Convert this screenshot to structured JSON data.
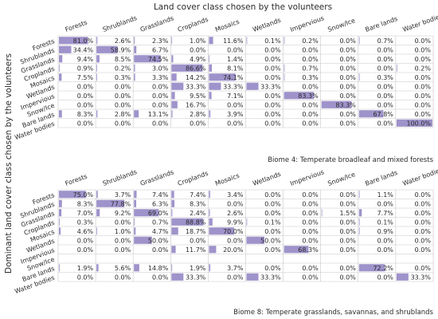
{
  "title": "Land cover class chosen by the volunteers",
  "ylabel": "Dominant land cover class chosen by the volunteers",
  "colors": {
    "bar": "#9f93cb",
    "grid": "#c8c8c8",
    "text": "#2a2a2a"
  },
  "chart_data": [
    {
      "type": "table",
      "caption": "Biome 4: Temperate broadleaf and mixed forests",
      "columns": [
        "Forests",
        "Shrublands",
        "Grasslands",
        "Croplands",
        "Mosaics",
        "Wetlands",
        "Impervious",
        "Snow/Ice",
        "Bare lands",
        "Water bodies"
      ],
      "rows": [
        "Forests",
        "Shrublands",
        "Grasslands",
        "Croplands",
        "Mosaics",
        "Wetlands",
        "Impervious",
        "Snow/Ice",
        "Bare lands",
        "Water bodies"
      ],
      "values": [
        [
          "81.0%",
          "2.6%",
          "2.3%",
          "1.0%",
          "11.6%",
          "0.1%",
          "0.2%",
          "0.0%",
          "0.7%",
          "0.0%"
        ],
        [
          "34.4%",
          "58.9%",
          "6.7%",
          "0.0%",
          "0.0%",
          "0.0%",
          "0.0%",
          "0.0%",
          "0.0%",
          "0.0%"
        ],
        [
          "9.4%",
          "8.5%",
          "74.5%",
          "4.9%",
          "1.4%",
          "0.0%",
          "0.0%",
          "0.0%",
          "0.0%",
          "0.0%"
        ],
        [
          "0.9%",
          "0.2%",
          "3.0%",
          "86.6%",
          "8.1%",
          "0.0%",
          "0.7%",
          "0.0%",
          "0.0%",
          "0.2%"
        ],
        [
          "7.5%",
          "0.3%",
          "3.3%",
          "14.2%",
          "74.1%",
          "0.0%",
          "0.3%",
          "0.0%",
          "0.3%",
          "0.0%"
        ],
        [
          "0.0%",
          "0.0%",
          "0.0%",
          "33.3%",
          "33.3%",
          "33.3%",
          "0.0%",
          "0.0%",
          "0.0%",
          "0.0%"
        ],
        [
          "0.0%",
          "0.0%",
          "0.0%",
          "9.5%",
          "7.1%",
          "0.0%",
          "83.3%",
          "0.0%",
          "0.0%",
          "0.0%"
        ],
        [
          "0.0%",
          "0.0%",
          "0.0%",
          "16.7%",
          "0.0%",
          "0.0%",
          "0.0%",
          "83.3%",
          "0.0%",
          "0.0%"
        ],
        [
          "8.3%",
          "2.8%",
          "13.1%",
          "2.8%",
          "3.9%",
          "0.0%",
          "0.0%",
          "0.0%",
          "67.8%",
          "0.0%"
        ],
        [
          "0.0%",
          "0.0%",
          "0.0%",
          "0.0%",
          "0.0%",
          "0.0%",
          "0.0%",
          "0.0%",
          "0.0%",
          "100.0%"
        ]
      ]
    },
    {
      "type": "table",
      "caption": "Biome 8: Temperate grasslands, savannas, and shrublands",
      "columns": [
        "Forests",
        "Shrublands",
        "Grasslands",
        "Croplands",
        "Mosaics",
        "Wetlands",
        "Impervious",
        "Snow/Ice",
        "Bare lands",
        "Water bodies"
      ],
      "rows": [
        "Forests",
        "Shrublands",
        "Grasslands",
        "Croplands",
        "Mosaics",
        "Wetlands",
        "Impervious",
        "Snow/Ice",
        "Bare lands",
        "Water bodies"
      ],
      "values": [
        [
          "75.0%",
          "3.7%",
          "7.4%",
          "7.4%",
          "3.4%",
          "0.0%",
          "0.0%",
          "0.0%",
          "1.1%",
          "0.0%"
        ],
        [
          "8.3%",
          "77.8%",
          "6.3%",
          "8.3%",
          "0.0%",
          "0.0%",
          "0.0%",
          "0.0%",
          "0.0%",
          "0.0%"
        ],
        [
          "7.0%",
          "9.2%",
          "69.0%",
          "2.4%",
          "2.6%",
          "0.0%",
          "0.0%",
          "1.5%",
          "7.7%",
          "0.0%"
        ],
        [
          "0.3%",
          "0.0%",
          "0.7%",
          "88.8%",
          "9.9%",
          "0.1%",
          "0.0%",
          "0.0%",
          "0.1%",
          "0.0%"
        ],
        [
          "4.6%",
          "1.0%",
          "4.7%",
          "18.7%",
          "70.0%",
          "0.0%",
          "0.0%",
          "0.0%",
          "0.9%",
          "0.0%"
        ],
        [
          "0.0%",
          "0.0%",
          "50.0%",
          "0.0%",
          "0.0%",
          "50.0%",
          "0.0%",
          "0.0%",
          "0.0%",
          "0.0%"
        ],
        [
          "0.0%",
          "0.0%",
          "0.0%",
          "11.7%",
          "20.0%",
          "0.0%",
          "68.3%",
          "0.0%",
          "0.0%",
          "0.0%"
        ],
        [
          "",
          "",
          "",
          "",
          "",
          "",
          "",
          "",
          "",
          ""
        ],
        [
          "1.9%",
          "5.6%",
          "14.8%",
          "1.9%",
          "3.7%",
          "0.0%",
          "0.0%",
          "0.0%",
          "72.2%",
          "0.0%"
        ],
        [
          "0.0%",
          "0.0%",
          "0.0%",
          "33.3%",
          "0.0%",
          "33.3%",
          "0.0%",
          "0.0%",
          "0.0%",
          "33.3%"
        ]
      ]
    }
  ]
}
